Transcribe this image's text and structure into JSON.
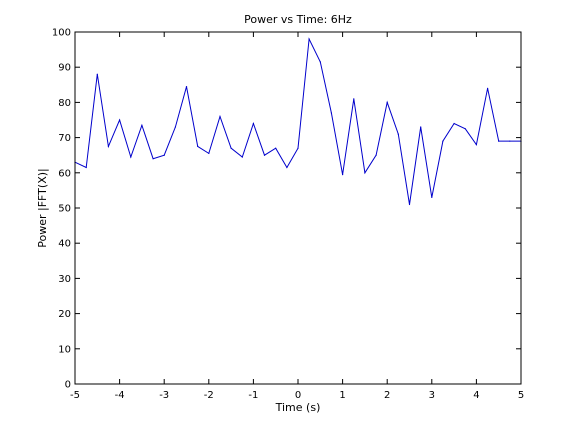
{
  "chart_data": {
    "type": "line",
    "title": "Power vs Time: 6Hz",
    "xlabel": "Time (s)",
    "ylabel": "Power |FFT(X)|",
    "xlim": [
      -5,
      5
    ],
    "ylim": [
      0,
      100
    ],
    "xticks": [
      -5,
      -4,
      -3,
      -2,
      -1,
      0,
      1,
      2,
      3,
      4,
      5
    ],
    "yticks": [
      0,
      10,
      20,
      30,
      40,
      50,
      60,
      70,
      80,
      90,
      100
    ],
    "grid": false,
    "legend": "none",
    "series": [
      {
        "color": "#0000cc",
        "x": [
          -5.0,
          -4.75,
          -4.5,
          -4.25,
          -4.0,
          -3.75,
          -3.5,
          -3.25,
          -3.0,
          -2.75,
          -2.5,
          -2.25,
          -2.0,
          -1.75,
          -1.5,
          -1.25,
          -1.0,
          -0.75,
          -0.5,
          -0.25,
          0.0,
          0.25,
          0.5,
          0.75,
          1.0,
          1.25,
          1.5,
          1.75,
          2.0,
          2.25,
          2.5,
          2.75,
          3.0,
          3.25,
          3.5,
          3.75,
          4.0,
          4.25,
          4.5,
          4.75,
          5.0
        ],
        "y": [
          63,
          61.5,
          88,
          67.5,
          75,
          64.5,
          73.5,
          64,
          65,
          73,
          84.5,
          67.5,
          65.5,
          76,
          67,
          64.5,
          74,
          65,
          67,
          61.5,
          67,
          98,
          91.5,
          77,
          59.5,
          81,
          60,
          65,
          80,
          71,
          51,
          73,
          53,
          69,
          74,
          72.5,
          68,
          84,
          69,
          69,
          69
        ]
      }
    ]
  }
}
